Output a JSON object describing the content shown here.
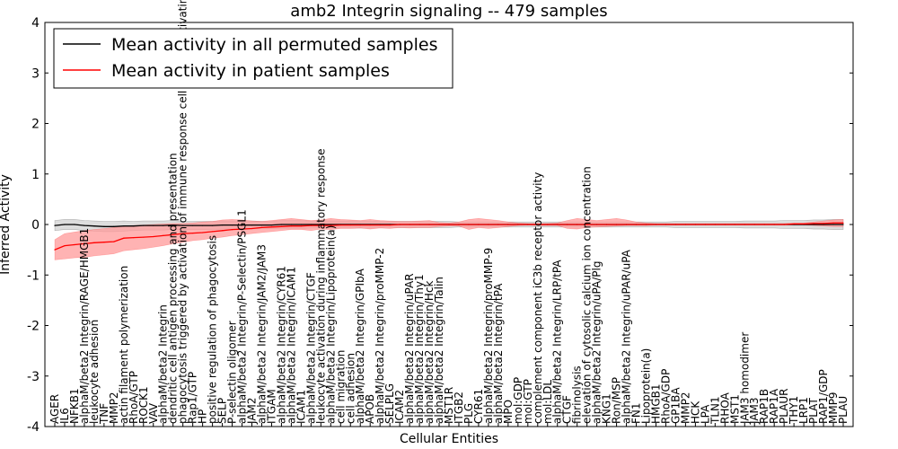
{
  "chart_data": {
    "type": "line",
    "title": "amb2 Integrin signaling -- 479 samples",
    "xlabel": "Cellular Entities",
    "ylabel": "Inferred Activity",
    "ylim": [
      -4,
      4
    ],
    "yticks": [
      -4,
      -3,
      -2,
      -1,
      0,
      1,
      2,
      3,
      4
    ],
    "legend_position": "top-left",
    "categories": [
      "AGER",
      "IL6",
      "NFKB1",
      "alphaM/beta2 Integrin/RAGE/HMGB1",
      "leukocyte adhesion",
      "TNF",
      "MMP2",
      "actin filament polymerization",
      "RhoA/GTP",
      "ROCK1",
      "VAV",
      "alphaM/beta2 Integrin",
      "dendritic cell antigen processing and presentation",
      "phagocytosis triggered by activation of immune response cell surface activating receptor",
      "Rap1/GTP",
      "HP",
      "positive regulation of phagocytosis",
      "SELP",
      "P-selectin oligomer",
      "alphaM/beta2 Integrin/P-Selectin/PSGL1",
      "JAM2",
      "alphaM/beta2 Integrin/JAM2/JAM3",
      "ITGAM",
      "alphaM/beta2 Integrin/CYR61",
      "alphaM/beta2 Integrin/ICAM1",
      "ICAM1",
      "alphaM/beta2 Integrin/CTGF",
      "leukocyte activation during inflammatory response",
      "alphaM/beta2 Integrin/Lipoprotein(a)",
      "cell migration",
      "cell adhesion",
      "alphaM/beta2 Integrin/GPIbA",
      "APOB",
      "alphaM/beta2 Integrin/proMMP-2",
      "SELPLG",
      "ICAM2",
      "alphaM/beta2 Integrin/uPAR",
      "alphaM/beta2 Integrin/Thy1",
      "alphaM/beta2 Integrin/Hck",
      "alphaM/beta2 Integrin/Talin",
      "MST1R",
      "ITGB2",
      "PLG",
      "CYR61",
      "alphaM/beta2 Integrin/proMMP-9",
      "alphaM/beta2 Integrin/tPA",
      "MPO",
      "mol:GDP",
      "mol:GTP",
      "complement component iC3b receptor activity",
      "mol:LDL",
      "alphaM/beta2 Integrin/LRP/tPA",
      "CTGF",
      "fibrinolysis",
      "elevation of cytosolic calcium ion concentration",
      "alphaM/beta2 Integrin/uPA/Plg",
      "KNG1",
      "Ron/MSP",
      "alphaM/beta2 Integrin/uPAR/uPA",
      "FN1",
      "Lipoprotein(a)",
      "HMGB1",
      "RhoA/GDP",
      "GP1BA",
      "MMP2",
      "HCK",
      "LPA",
      "TLN1",
      "RHOA",
      "MST1",
      "JAM3 homodimer",
      "JAM3",
      "RAP1B",
      "RAP1A",
      "PLAUR",
      "THY1",
      "LRP1",
      "PLAT",
      "RAP1/GDP",
      "MMP9",
      "PLAU"
    ],
    "series": [
      {
        "name": "Mean activity in all permuted samples",
        "color": "#000000",
        "band_color": "#d9d9d9",
        "values": [
          -0.02,
          0.0,
          0.0,
          -0.02,
          -0.03,
          -0.04,
          -0.04,
          -0.03,
          -0.03,
          -0.02,
          -0.02,
          -0.02,
          -0.01,
          -0.02,
          -0.02,
          -0.02,
          -0.02,
          -0.01,
          -0.01,
          -0.01,
          -0.01,
          -0.01,
          -0.01,
          0.0,
          0.0,
          0.0,
          0.0,
          0.0,
          0.0,
          0.0,
          0.0,
          0.0,
          0.0,
          0.0,
          0.0,
          0.0,
          0.0,
          0.0,
          0.0,
          0.0,
          0.0,
          0.0,
          0.0,
          0.0,
          0.0,
          0.0,
          0.0,
          0.0,
          0.0,
          0.0,
          0.0,
          0.0,
          0.0,
          0.0,
          0.0,
          0.0,
          0.0,
          0.0,
          0.0,
          0.0,
          0.0,
          0.0,
          0.0,
          0.0,
          0.0,
          0.0,
          0.0,
          0.0,
          0.0,
          0.0,
          0.0,
          0.0,
          0.0,
          0.0,
          0.0,
          0.0,
          0.0,
          0.0,
          0.0,
          0.0,
          0.0
        ],
        "lower": [
          -0.12,
          -0.1,
          -0.1,
          -0.12,
          -0.13,
          -0.14,
          -0.14,
          -0.13,
          -0.12,
          -0.11,
          -0.11,
          -0.11,
          -0.1,
          -0.1,
          -0.1,
          -0.1,
          -0.1,
          -0.09,
          -0.09,
          -0.09,
          -0.09,
          -0.08,
          -0.08,
          -0.08,
          -0.08,
          -0.08,
          -0.07,
          -0.07,
          -0.07,
          -0.07,
          -0.07,
          -0.07,
          -0.07,
          -0.06,
          -0.06,
          -0.06,
          -0.06,
          -0.06,
          -0.06,
          -0.06,
          -0.06,
          -0.05,
          -0.05,
          -0.05,
          -0.05,
          -0.05,
          -0.05,
          -0.05,
          -0.05,
          -0.05,
          -0.05,
          -0.05,
          -0.05,
          -0.05,
          -0.05,
          -0.05,
          -0.05,
          -0.05,
          -0.05,
          -0.05,
          -0.05,
          -0.05,
          -0.05,
          -0.06,
          -0.06,
          -0.06,
          -0.06,
          -0.06,
          -0.06,
          -0.06,
          -0.07,
          -0.07,
          -0.07,
          -0.07,
          -0.08,
          -0.08,
          -0.08,
          -0.09,
          -0.09,
          -0.1,
          -0.1
        ],
        "upper": [
          0.08,
          0.1,
          0.1,
          0.08,
          0.07,
          0.06,
          0.06,
          0.07,
          0.06,
          0.07,
          0.07,
          0.07,
          0.08,
          0.06,
          0.06,
          0.06,
          0.06,
          0.07,
          0.07,
          0.07,
          0.07,
          0.06,
          0.06,
          0.08,
          0.08,
          0.08,
          0.07,
          0.07,
          0.07,
          0.07,
          0.07,
          0.07,
          0.07,
          0.06,
          0.06,
          0.06,
          0.06,
          0.06,
          0.06,
          0.06,
          0.06,
          0.05,
          0.05,
          0.05,
          0.05,
          0.05,
          0.05,
          0.05,
          0.05,
          0.05,
          0.05,
          0.05,
          0.05,
          0.05,
          0.05,
          0.05,
          0.05,
          0.05,
          0.05,
          0.05,
          0.05,
          0.05,
          0.05,
          0.06,
          0.06,
          0.06,
          0.06,
          0.06,
          0.06,
          0.06,
          0.07,
          0.07,
          0.07,
          0.07,
          0.08,
          0.08,
          0.08,
          0.09,
          0.09,
          0.1,
          0.1
        ]
      },
      {
        "name": "Mean activity in patient samples",
        "color": "#ff0000",
        "band_color": "#ff9999",
        "values": [
          -0.5,
          -0.42,
          -0.4,
          -0.38,
          -0.36,
          -0.35,
          -0.34,
          -0.27,
          -0.26,
          -0.25,
          -0.24,
          -0.22,
          -0.2,
          -0.18,
          -0.17,
          -0.16,
          -0.14,
          -0.12,
          -0.1,
          -0.09,
          -0.08,
          -0.06,
          -0.05,
          -0.04,
          -0.03,
          -0.03,
          -0.02,
          -0.02,
          -0.02,
          -0.01,
          -0.01,
          -0.01,
          -0.01,
          -0.01,
          -0.01,
          0.0,
          0.0,
          0.0,
          0.0,
          0.0,
          0.0,
          0.0,
          0.0,
          0.0,
          0.0,
          0.0,
          0.0,
          0.0,
          0.0,
          0.0,
          0.0,
          0.0,
          0.0,
          0.0,
          0.0,
          0.0,
          0.0,
          0.0,
          0.0,
          0.0,
          0.0,
          0.0,
          0.0,
          0.0,
          0.0,
          0.0,
          0.0,
          0.0,
          0.0,
          0.0,
          0.0,
          0.0,
          0.0,
          0.0,
          0.0,
          0.01,
          0.01,
          0.02,
          0.02,
          0.03,
          0.03
        ],
        "lower": [
          -0.7,
          -0.68,
          -0.66,
          -0.65,
          -0.62,
          -0.6,
          -0.58,
          -0.52,
          -0.5,
          -0.48,
          -0.45,
          -0.42,
          -0.38,
          -0.35,
          -0.32,
          -0.3,
          -0.27,
          -0.25,
          -0.22,
          -0.2,
          -0.18,
          -0.16,
          -0.14,
          -0.12,
          -0.1,
          -0.1,
          -0.12,
          -0.09,
          -0.1,
          -0.08,
          -0.08,
          -0.07,
          -0.09,
          -0.07,
          -0.08,
          -0.06,
          -0.07,
          -0.06,
          -0.06,
          -0.04,
          -0.03,
          -0.03,
          -0.1,
          -0.06,
          -0.08,
          -0.06,
          -0.04,
          -0.02,
          -0.01,
          -0.02,
          -0.02,
          -0.02,
          -0.08,
          -0.09,
          -0.06,
          -0.05,
          -0.04,
          -0.03,
          -0.02,
          -0.02,
          -0.02,
          -0.01,
          -0.01,
          -0.01,
          -0.01,
          -0.01,
          -0.01,
          -0.01,
          -0.01,
          -0.01,
          -0.01,
          -0.01,
          -0.01,
          -0.01,
          -0.01,
          -0.01,
          -0.01,
          -0.02,
          -0.03,
          -0.04,
          -0.04
        ],
        "upper": [
          -0.3,
          -0.18,
          -0.15,
          -0.12,
          -0.1,
          -0.08,
          -0.06,
          -0.03,
          -0.02,
          -0.01,
          0.0,
          0.01,
          0.02,
          0.02,
          0.03,
          0.05,
          0.06,
          0.09,
          0.1,
          0.09,
          0.07,
          0.06,
          0.08,
          0.1,
          0.12,
          0.1,
          0.08,
          0.09,
          0.12,
          0.1,
          0.09,
          0.08,
          0.1,
          0.08,
          0.07,
          0.06,
          0.06,
          0.07,
          0.08,
          0.04,
          0.03,
          0.05,
          0.1,
          0.12,
          0.1,
          0.08,
          0.05,
          0.03,
          0.02,
          0.02,
          0.02,
          0.03,
          0.08,
          0.12,
          0.1,
          0.08,
          0.1,
          0.12,
          0.09,
          0.05,
          0.03,
          0.02,
          0.02,
          0.02,
          0.02,
          0.02,
          0.02,
          0.02,
          0.02,
          0.02,
          0.02,
          0.02,
          0.02,
          0.02,
          0.02,
          0.03,
          0.03,
          0.05,
          0.07,
          0.09,
          0.1
        ]
      }
    ]
  }
}
